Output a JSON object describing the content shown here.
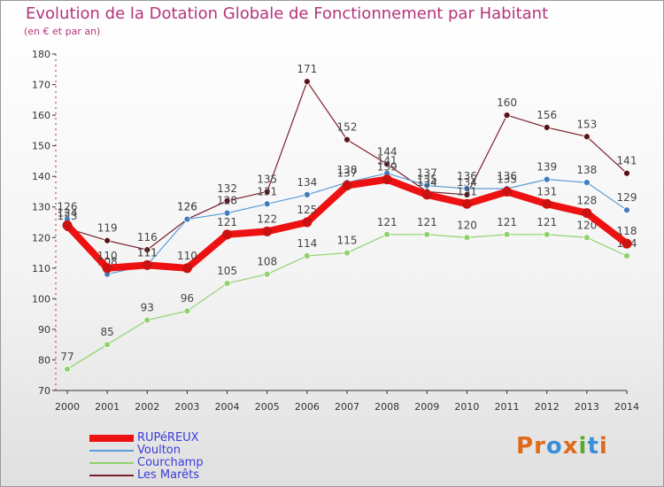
{
  "title": "Evolution de la Dotation Globale de Fonctionnement par Habitant",
  "subtitle": "(en € et par an)",
  "logo": {
    "text": "Proxiti",
    "colors": [
      "#e06a1a",
      "#e06a1a",
      "#3c8fd6",
      "#e06a1a",
      "#5aaa2a",
      "#3c8fd6",
      "#e06a1a"
    ]
  },
  "chart_data": {
    "type": "line",
    "title": "Evolution de la Dotation Globale de Fonctionnement par Habitant",
    "subtitle": "(en € et par an)",
    "xlabel": "",
    "ylabel": "",
    "ylim": [
      70,
      180
    ],
    "yticks": [
      70,
      80,
      90,
      100,
      110,
      120,
      130,
      140,
      150,
      160,
      170,
      180
    ],
    "grid": false,
    "legend_position": "bottom-left",
    "categories": [
      "2000",
      "2001",
      "2002",
      "2003",
      "2004",
      "2005",
      "2006",
      "2007",
      "2008",
      "2009",
      "2010",
      "2011",
      "2012",
      "2013",
      "2014"
    ],
    "series": [
      {
        "name": "Les Marêts",
        "color": "#7a1f2b",
        "dot": "#5a1018",
        "width": 1.2,
        "labels": "above",
        "values": [
          123,
          119,
          116,
          126,
          132,
          135,
          171,
          152,
          144,
          135,
          134,
          160,
          156,
          153,
          141
        ]
      },
      {
        "name": "Courchamp",
        "color": "#8fd36b",
        "dot": "#8fd36b",
        "width": 1.2,
        "labels": "above",
        "values": [
          77,
          85,
          93,
          96,
          105,
          108,
          114,
          115,
          121,
          121,
          120,
          121,
          121,
          120,
          114
        ]
      },
      {
        "name": "Voulton",
        "color": "#5b9bd5",
        "dot": "#3d7ec0",
        "width": 1.2,
        "labels": "above",
        "values": [
          126,
          108,
          111,
          126,
          128,
          131,
          134,
          138,
          141,
          137,
          136,
          136,
          139,
          138,
          129
        ]
      },
      {
        "name": "RUPéREUX",
        "color": "#ee1111",
        "dot": "#cc1111",
        "width": 8,
        "labels": "above",
        "values": [
          124,
          110,
          111,
          110,
          121,
          122,
          125,
          137,
          139,
          134,
          131,
          135,
          131,
          128,
          118
        ]
      }
    ]
  },
  "legend": [
    {
      "name": "RUPéREUX",
      "color": "#ee1111",
      "height": 8
    },
    {
      "name": "Voulton",
      "color": "#5b9bd5",
      "height": 2
    },
    {
      "name": "Courchamp",
      "color": "#8fd36b",
      "height": 2
    },
    {
      "name": "Les Marêts",
      "color": "#7a1f2b",
      "height": 2
    }
  ]
}
